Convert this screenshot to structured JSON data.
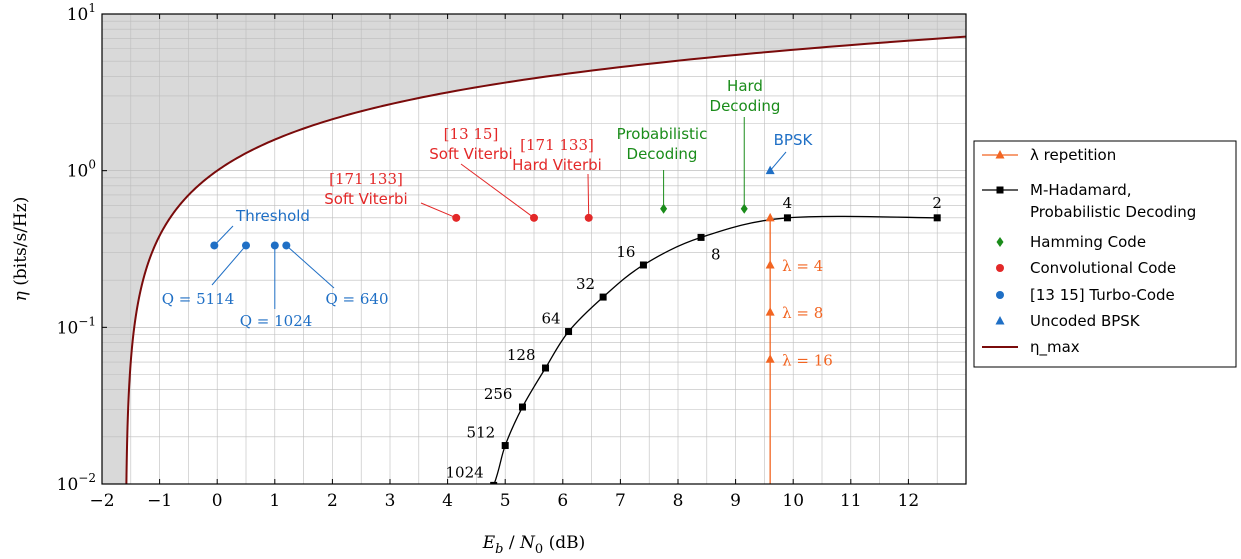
{
  "chart_data": {
    "type": "scatter",
    "xlabel": "E_b / N_0 (dB)",
    "ylabel": "η (bits/s/Hz)",
    "xlim": [
      -2,
      13
    ],
    "ylim": [
      0.01,
      10
    ],
    "yscale": "log",
    "grid": true,
    "legend_position": "right",
    "x_ticks": [
      -2,
      -1,
      0,
      1,
      2,
      3,
      4,
      5,
      6,
      7,
      8,
      9,
      10,
      11,
      12
    ],
    "x_tick_labels": [
      "−2",
      "−1",
      "0",
      "1",
      "2",
      "3",
      "4",
      "5",
      "6",
      "7",
      "8",
      "9",
      "10",
      "11",
      "12"
    ],
    "y_ticks": [
      {
        "value": 10,
        "base": "10",
        "exp": "1"
      },
      {
        "value": 1,
        "base": "10",
        "exp": "0"
      },
      {
        "value": 0.1,
        "base": "10",
        "exp": "−1"
      },
      {
        "value": 0.01,
        "base": "10",
        "exp": "−2"
      }
    ],
    "colors": {
      "repetition": "#f26522",
      "hadamard": "#000000",
      "hamming": "#1a8c1a",
      "convolutional": "#e32828",
      "turbo": "#1f6fc5",
      "bpsk": "#1f6fc5",
      "eta_max": "#7a0b0b",
      "shade": "#d9d9d9"
    },
    "series": [
      {
        "name": "λ repetition",
        "key": "repetition",
        "marker": "triangle",
        "points": [
          {
            "x": 9.6,
            "y": 0.5
          },
          {
            "x": 9.6,
            "y": 0.25,
            "label": "λ = 4"
          },
          {
            "x": 9.6,
            "y": 0.125,
            "label": "λ = 8"
          },
          {
            "x": 9.6,
            "y": 0.0625,
            "label": "λ = 16"
          }
        ]
      },
      {
        "name_lines": [
          "M-Hadamard,",
          "Probabilistic Decoding"
        ],
        "key": "hadamard",
        "marker": "square",
        "points": [
          {
            "x": 12.5,
            "y": 0.5,
            "label": "2"
          },
          {
            "x": 9.9,
            "y": 0.5,
            "label": "4"
          },
          {
            "x": 8.4,
            "y": 0.375,
            "label": "8"
          },
          {
            "x": 7.4,
            "y": 0.25,
            "label": "16"
          },
          {
            "x": 6.7,
            "y": 0.156,
            "label": "32"
          },
          {
            "x": 6.1,
            "y": 0.094,
            "label": "64"
          },
          {
            "x": 5.7,
            "y": 0.055,
            "label": "128"
          },
          {
            "x": 5.3,
            "y": 0.031,
            "label": "256"
          },
          {
            "x": 5.0,
            "y": 0.0176,
            "label": "512"
          },
          {
            "x": 4.8,
            "y": 0.0098,
            "label": "1024"
          }
        ]
      },
      {
        "name": "Hamming Code",
        "key": "hamming",
        "marker": "diamond",
        "points": [
          {
            "x": 7.75,
            "y": 0.571
          },
          {
            "x": 9.15,
            "y": 0.571
          }
        ]
      },
      {
        "name": "Convolutional Code",
        "key": "convolutional",
        "marker": "circle",
        "points": [
          {
            "x": 4.15,
            "y": 0.5
          },
          {
            "x": 5.5,
            "y": 0.5
          },
          {
            "x": 6.45,
            "y": 0.5
          }
        ]
      },
      {
        "name": "[13 15] Turbo-Code",
        "key": "turbo",
        "marker": "circle",
        "points": [
          {
            "x": -0.05,
            "y": 0.333
          },
          {
            "x": 0.5,
            "y": 0.333
          },
          {
            "x": 1.0,
            "y": 0.333
          },
          {
            "x": 1.2,
            "y": 0.333
          }
        ]
      },
      {
        "name": "Uncoded BPSK",
        "key": "bpsk",
        "marker": "triangle",
        "points": [
          {
            "x": 9.6,
            "y": 1.0
          }
        ]
      },
      {
        "name": "η_max",
        "key": "eta_max",
        "marker": "none",
        "formula": "Eb/N0 = 10*log10((2^η - 1)/η)",
        "eta_range": [
          0.01,
          10
        ]
      }
    ],
    "hadamard_tail": {
      "from": {
        "x": 12.5,
        "y": 0.5
      },
      "to": {
        "x": 4.3,
        "y": 0.0035
      }
    },
    "annotations": [
      {
        "lines": [
          "Threshold"
        ],
        "color_key": "turbo",
        "font": "sans"
      },
      {
        "lines": [
          "Q = 5114"
        ],
        "color_key": "turbo",
        "font": "serif"
      },
      {
        "lines": [
          "Q = 1024"
        ],
        "color_key": "turbo",
        "font": "serif"
      },
      {
        "lines": [
          "Q = 640"
        ],
        "color_key": "turbo",
        "font": "serif"
      },
      {
        "lines": [
          "[171 133]",
          "Soft Viterbi"
        ],
        "color_key": "convolutional",
        "font": "mixed"
      },
      {
        "lines": [
          "[13 15]",
          "Soft Viterbi"
        ],
        "color_key": "convolutional",
        "font": "mixed"
      },
      {
        "lines": [
          "[171 133]",
          "Hard Viterbi"
        ],
        "color_key": "convolutional",
        "font": "mixed"
      },
      {
        "lines": [
          "Probabilistic",
          "Decoding"
        ],
        "color_key": "hamming",
        "font": "sans"
      },
      {
        "lines": [
          "Hard",
          "Decoding"
        ],
        "color_key": "hamming",
        "font": "sans"
      },
      {
        "lines": [
          "BPSK"
        ],
        "color_key": "bpsk",
        "font": "sans"
      }
    ]
  }
}
